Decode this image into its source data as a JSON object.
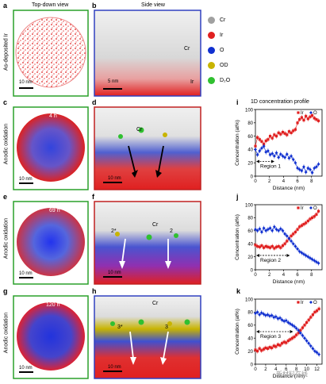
{
  "panel_letters": [
    "a",
    "b",
    "c",
    "d",
    "e",
    "f",
    "g",
    "h",
    "i",
    "j",
    "k"
  ],
  "headers": {
    "top_down": "Top-down view",
    "side": "Side view"
  },
  "row_labels": [
    "As-deposited Ir",
    "Anodic oxidation",
    "Anodic oxidation",
    "Anodic oxidation"
  ],
  "time_labels": [
    "",
    "4 h",
    "69 h",
    "120 h"
  ],
  "scale_bars": {
    "top": "10 nm",
    "side": "5 nm",
    "side_rest": "10 nm"
  },
  "side_texts": {
    "cr": "Cr",
    "ir": "Ir",
    "mark2": "2",
    "mark2star": "2*",
    "mark3": "3",
    "mark3star": "3*"
  },
  "legend": [
    {
      "label": "Cr",
      "color": "#a0a0a0"
    },
    {
      "label": "Ir",
      "color": "#e02020"
    },
    {
      "label": "O",
      "color": "#1030d0"
    },
    {
      "label": "OD",
      "color": "#c8b400"
    },
    {
      "label": "D₂O",
      "color": "#30c030"
    }
  ],
  "profile_title": "1D concentration profile",
  "watermark": "新材料在线",
  "chart_data": [
    {
      "type": "scatter",
      "panel": "i",
      "xlabel": "Distance (nm)",
      "ylabel": "Concentration (at%)",
      "xlim": [
        0,
        9.5
      ],
      "ylim": [
        0,
        100
      ],
      "xticks": [
        0,
        2,
        4,
        6,
        8
      ],
      "yticks": [
        0,
        20,
        40,
        60,
        80,
        100
      ],
      "legend_position": "top-right",
      "region_label": "Region 1",
      "region_range": [
        0,
        2.6
      ],
      "region_y": 22,
      "series": [
        {
          "name": "Ir",
          "color": "#e02020",
          "marker": "square",
          "x": [
            0,
            0.3,
            0.6,
            0.9,
            1.2,
            1.5,
            1.8,
            2.1,
            2.4,
            2.7,
            3,
            3.3,
            3.6,
            3.9,
            4.2,
            4.5,
            4.8,
            5.1,
            5.4,
            5.7,
            6,
            6.3,
            6.6,
            6.9,
            7.2,
            7.5,
            7.8,
            8.1,
            8.4,
            8.7,
            9
          ],
          "values": [
            45,
            58,
            55,
            52,
            48,
            53,
            55,
            60,
            57,
            62,
            60,
            65,
            63,
            66,
            64,
            62,
            67,
            65,
            68,
            70,
            80,
            85,
            88,
            84,
            90,
            86,
            89,
            91,
            87,
            85,
            83
          ]
        },
        {
          "name": "O",
          "color": "#1030d0",
          "marker": "diamond",
          "x": [
            0,
            0.3,
            0.6,
            0.9,
            1.2,
            1.5,
            1.8,
            2.1,
            2.4,
            2.7,
            3,
            3.3,
            3.6,
            3.9,
            4.2,
            4.5,
            4.8,
            5.1,
            5.4,
            5.7,
            6,
            6.3,
            6.6,
            6.9,
            7.2,
            7.5,
            7.8,
            8.1,
            8.4,
            8.7,
            9
          ],
          "values": [
            40,
            32,
            38,
            42,
            45,
            36,
            38,
            32,
            34,
            30,
            35,
            28,
            33,
            30,
            28,
            33,
            27,
            30,
            25,
            20,
            12,
            10,
            8,
            14,
            6,
            12,
            10,
            5,
            12,
            14,
            18
          ]
        }
      ]
    },
    {
      "type": "scatter",
      "panel": "j",
      "xlabel": "Distance (nm)",
      "ylabel": "Concentration (at%)",
      "xlim": [
        0,
        9.5
      ],
      "ylim": [
        0,
        100
      ],
      "xticks": [
        0,
        2,
        4,
        6,
        8
      ],
      "yticks": [
        0,
        20,
        40,
        60,
        80,
        100
      ],
      "legend_position": "top-right",
      "region_label": "Region 2",
      "region_range": [
        0,
        4.8
      ],
      "region_y": 22,
      "series": [
        {
          "name": "Ir",
          "color": "#e02020",
          "marker": "square",
          "x": [
            0,
            0.3,
            0.6,
            0.9,
            1.2,
            1.5,
            1.8,
            2.1,
            2.4,
            2.7,
            3,
            3.3,
            3.6,
            3.9,
            4.2,
            4.5,
            4.8,
            5.1,
            5.4,
            5.7,
            6,
            6.3,
            6.6,
            6.9,
            7.2,
            7.5,
            7.8,
            8.1,
            8.4,
            8.7,
            9
          ],
          "values": [
            38,
            36,
            35,
            37,
            34,
            36,
            35,
            34,
            36,
            33,
            35,
            36,
            34,
            37,
            40,
            44,
            48,
            52,
            55,
            58,
            62,
            66,
            68,
            70,
            72,
            75,
            78,
            80,
            82,
            85,
            90
          ]
        },
        {
          "name": "O",
          "color": "#1030d0",
          "marker": "diamond",
          "x": [
            0,
            0.3,
            0.6,
            0.9,
            1.2,
            1.5,
            1.8,
            2.1,
            2.4,
            2.7,
            3,
            3.3,
            3.6,
            3.9,
            4.2,
            4.5,
            4.8,
            5.1,
            5.4,
            5.7,
            6,
            6.3,
            6.6,
            6.9,
            7.2,
            7.5,
            7.8,
            8.1,
            8.4,
            8.7,
            9
          ],
          "values": [
            62,
            60,
            63,
            58,
            64,
            60,
            62,
            64,
            60,
            66,
            62,
            60,
            63,
            60,
            55,
            52,
            48,
            44,
            40,
            36,
            32,
            28,
            26,
            24,
            22,
            20,
            18,
            16,
            14,
            12,
            10
          ]
        }
      ]
    },
    {
      "type": "scatter",
      "panel": "k",
      "xlabel": "Distance (nm)",
      "ylabel": "Concentration (at%)",
      "xlim": [
        0,
        13
      ],
      "ylim": [
        0,
        100
      ],
      "xticks": [
        0,
        2,
        4,
        6,
        8,
        10,
        12
      ],
      "yticks": [
        0,
        20,
        40,
        60,
        80,
        100
      ],
      "legend_position": "top-right",
      "region_label": "Region 3",
      "region_range": [
        0,
        7.2
      ],
      "region_y": 50,
      "series": [
        {
          "name": "Ir",
          "color": "#e02020",
          "marker": "square",
          "x": [
            0,
            0.4,
            0.8,
            1.2,
            1.6,
            2,
            2.4,
            2.8,
            3.2,
            3.6,
            4,
            4.4,
            4.8,
            5.2,
            5.6,
            6,
            6.4,
            6.8,
            7.2,
            7.6,
            8,
            8.4,
            8.8,
            9.2,
            9.6,
            10,
            10.4,
            10.8,
            11.2,
            11.6,
            12,
            12.4
          ],
          "values": [
            22,
            20,
            24,
            21,
            23,
            25,
            24,
            26,
            25,
            28,
            27,
            30,
            29,
            32,
            34,
            33,
            36,
            38,
            40,
            42,
            45,
            48,
            52,
            56,
            60,
            64,
            68,
            72,
            76,
            80,
            82,
            85
          ]
        },
        {
          "name": "O",
          "color": "#1030d0",
          "marker": "diamond",
          "x": [
            0,
            0.4,
            0.8,
            1.2,
            1.6,
            2,
            2.4,
            2.8,
            3.2,
            3.6,
            4,
            4.4,
            4.8,
            5.2,
            5.6,
            6,
            6.4,
            6.8,
            7.2,
            7.6,
            8,
            8.4,
            8.8,
            9.2,
            9.6,
            10,
            10.4,
            10.8,
            11.2,
            11.6,
            12,
            12.4
          ],
          "values": [
            78,
            80,
            76,
            79,
            77,
            75,
            76,
            74,
            75,
            72,
            73,
            70,
            71,
            68,
            66,
            67,
            64,
            62,
            60,
            58,
            55,
            52,
            48,
            44,
            40,
            36,
            32,
            28,
            24,
            20,
            18,
            15
          ]
        }
      ]
    }
  ]
}
